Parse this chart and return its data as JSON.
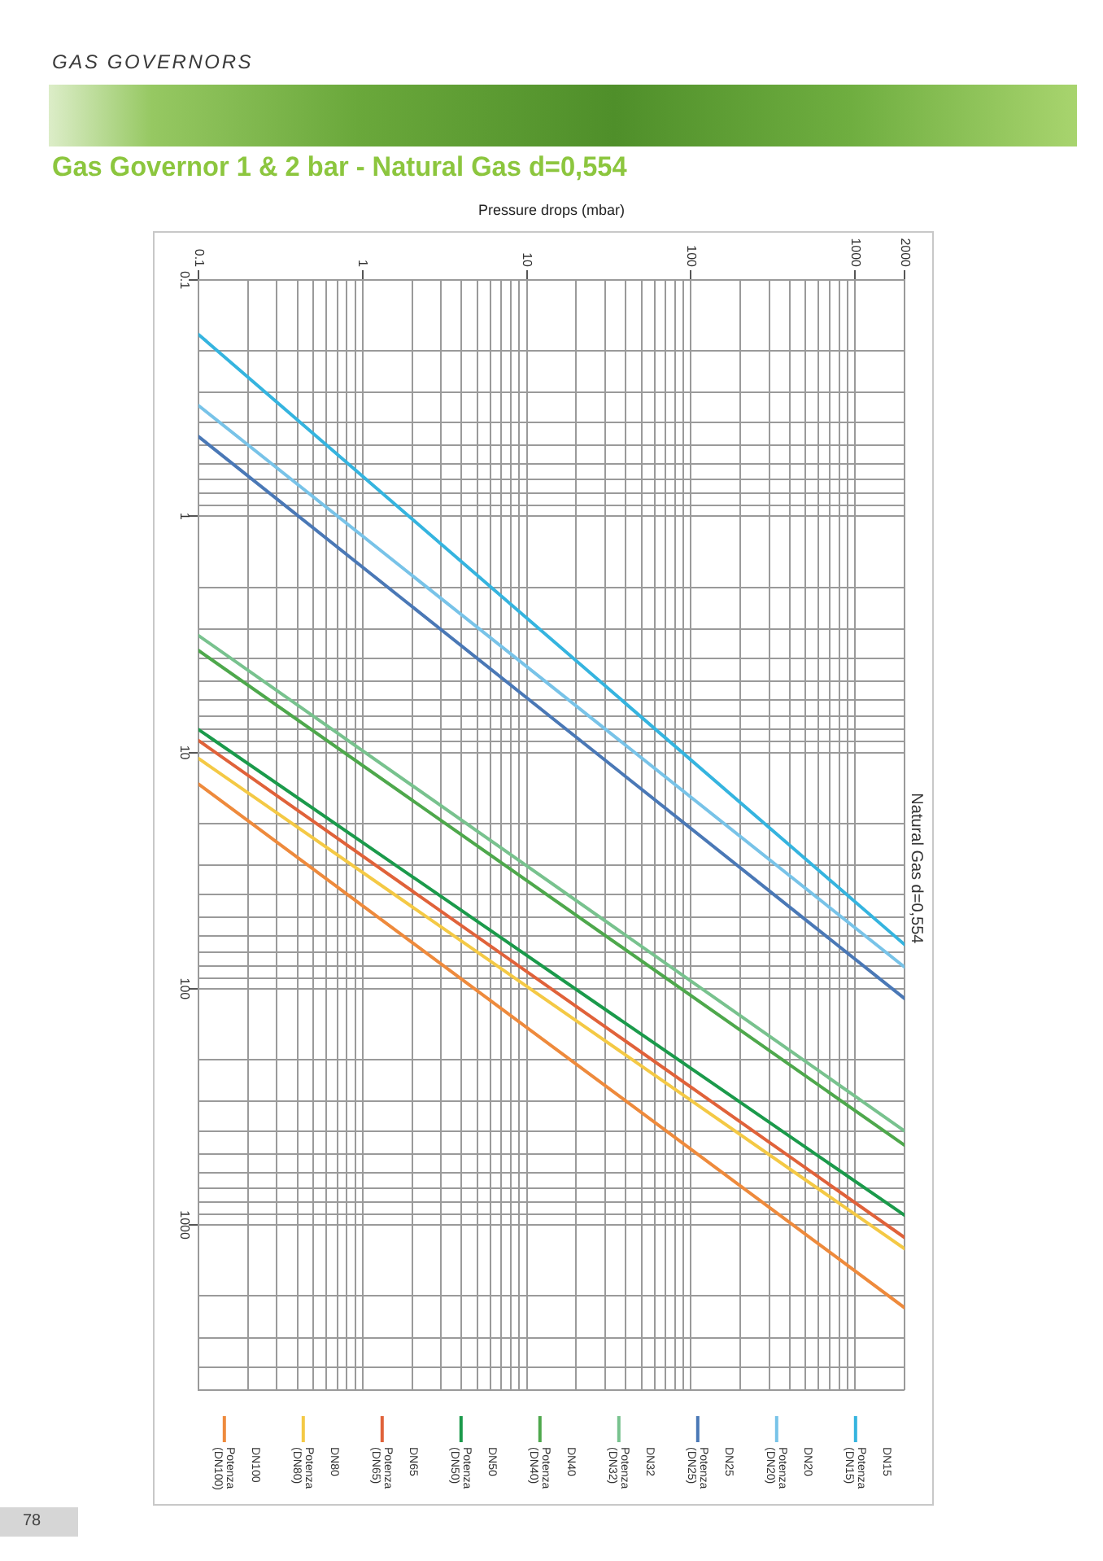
{
  "chart_data": {
    "type": "line",
    "title": "Gas Governor 1 & 2 bar - Natural Gas d=0,554",
    "xlabel": "Pressure drops (mbar)",
    "annotations": [
      "GAS GOVERNORS",
      "Natural Gas d=0,554",
      "78"
    ],
    "log": "xy",
    "grid": true,
    "legend": "bottom",
    "marker": "none",
    "line_style": "solid",
    "xlim": [
      0.1,
      2000
    ],
    "xticks": [
      0.1,
      {
        "value": 0.2,
        "label": null
      },
      {
        "value": 0.3,
        "label": null
      },
      {
        "value": 0.4,
        "label": null
      },
      {
        "value": 0.5,
        "label": null
      },
      {
        "value": 0.6,
        "label": null
      },
      {
        "value": 0.7,
        "label": null
      },
      {
        "value": 0.8,
        "label": null
      },
      {
        "value": 0.9,
        "label": null
      },
      1,
      {
        "value": 2,
        "label": null
      },
      {
        "value": 3,
        "label": null
      },
      {
        "value": 4,
        "label": null
      },
      {
        "value": 5,
        "label": null
      },
      {
        "value": 6,
        "label": null
      },
      {
        "value": 7,
        "label": null
      },
      {
        "value": 8,
        "label": null
      },
      {
        "value": 9,
        "label": null
      },
      10,
      {
        "value": 20,
        "label": null
      },
      {
        "value": 30,
        "label": null
      },
      {
        "value": 40,
        "label": null
      },
      {
        "value": 50,
        "label": null
      },
      {
        "value": 60,
        "label": null
      },
      {
        "value": 70,
        "label": null
      },
      {
        "value": 80,
        "label": null
      },
      {
        "value": 90,
        "label": null
      },
      100,
      {
        "value": 200,
        "label": null
      },
      {
        "value": 300,
        "label": null
      },
      {
        "value": 400,
        "label": null
      },
      {
        "value": 500,
        "label": null
      },
      {
        "value": 600,
        "label": null
      },
      {
        "value": 700,
        "label": null
      },
      {
        "value": 800,
        "label": null
      },
      {
        "value": 900,
        "label": null
      },
      1000,
      2000
    ],
    "ylim": [
      5000,
      0.1
    ],
    "yticks": [
      0.1,
      {
        "value": 0.2,
        "label": null
      },
      {
        "value": 0.3,
        "label": null
      },
      {
        "value": 0.4,
        "label": null
      },
      {
        "value": 0.5,
        "label": null
      },
      {
        "value": 0.6,
        "label": null
      },
      {
        "value": 0.7,
        "label": null
      },
      {
        "value": 0.8,
        "label": null
      },
      {
        "value": 0.9,
        "label": null
      },
      1,
      {
        "value": 2,
        "label": null
      },
      {
        "value": 3,
        "label": null
      },
      {
        "value": 4,
        "label": null
      },
      {
        "value": 5,
        "label": null
      },
      {
        "value": 6,
        "label": null
      },
      {
        "value": 7,
        "label": null
      },
      {
        "value": 8,
        "label": null
      },
      {
        "value": 9,
        "label": null
      },
      10,
      {
        "value": 20,
        "label": null
      },
      {
        "value": 30,
        "label": null
      },
      {
        "value": 40,
        "label": null
      },
      {
        "value": 50,
        "label": null
      },
      {
        "value": 60,
        "label": null
      },
      {
        "value": 70,
        "label": null
      },
      {
        "value": 80,
        "label": null
      },
      {
        "value": 90,
        "label": null
      },
      100,
      {
        "value": 200,
        "label": null
      },
      {
        "value": 300,
        "label": null
      },
      {
        "value": 400,
        "label": null
      },
      {
        "value": 500,
        "label": null
      },
      {
        "value": 600,
        "label": null
      },
      {
        "value": 700,
        "label": null
      },
      {
        "value": 800,
        "label": null
      },
      {
        "value": 900,
        "label": null
      },
      1000,
      {
        "value": 2000,
        "label": null
      },
      {
        "value": 3000,
        "label": null
      },
      {
        "value": 4000,
        "label": null
      },
      {
        "value": 5000,
        "label": null
      }
    ],
    "x": [
      0.1,
      2000
    ],
    "series": [
      {
        "name": "DN15",
        "values": [
          null,
          null
        ]
      },
      {
        "name": "Potenza (DN15)",
        "color": "#35b4df",
        "values": [
          0.17,
          65
        ]
      },
      {
        "name": "DN20",
        "values": [
          null,
          null
        ]
      },
      {
        "name": "Potenza (DN20)",
        "color": "#78c3e8",
        "values": [
          0.34,
          81
        ]
      },
      {
        "name": "DN25",
        "values": [
          null,
          null
        ]
      },
      {
        "name": "Potenza (DN25)",
        "color": "#4a78b6",
        "values": [
          0.46,
          110
        ]
      },
      {
        "name": "DN32",
        "values": [
          null,
          null
        ]
      },
      {
        "name": "Potenza (DN32)",
        "color": "#78c28e",
        "values": [
          3.2,
          400
        ]
      },
      {
        "name": "DN40",
        "values": [
          null,
          null
        ]
      },
      {
        "name": "Potenza (DN40)",
        "color": "#4ea84c",
        "values": [
          3.7,
          460
        ]
      },
      {
        "name": "DN50",
        "values": [
          null,
          null
        ]
      },
      {
        "name": "Potenza (DN50)",
        "color": "#1b9a4b",
        "values": [
          8.0,
          910
        ]
      },
      {
        "name": "DN65",
        "values": [
          null,
          null
        ]
      },
      {
        "name": "Potenza (DN65)",
        "color": "#e0623a",
        "values": [
          8.9,
          1130
        ]
      },
      {
        "name": "DN80",
        "values": [
          null,
          null
        ]
      },
      {
        "name": "Potenza (DN80)",
        "color": "#f4c945",
        "values": [
          10.6,
          1260
        ]
      },
      {
        "name": "DN100",
        "values": [
          null,
          null
        ]
      },
      {
        "name": "Potenza (DN100)",
        "color": "#ee8a3c",
        "values": [
          13.6,
          2240
        ]
      }
    ]
  }
}
